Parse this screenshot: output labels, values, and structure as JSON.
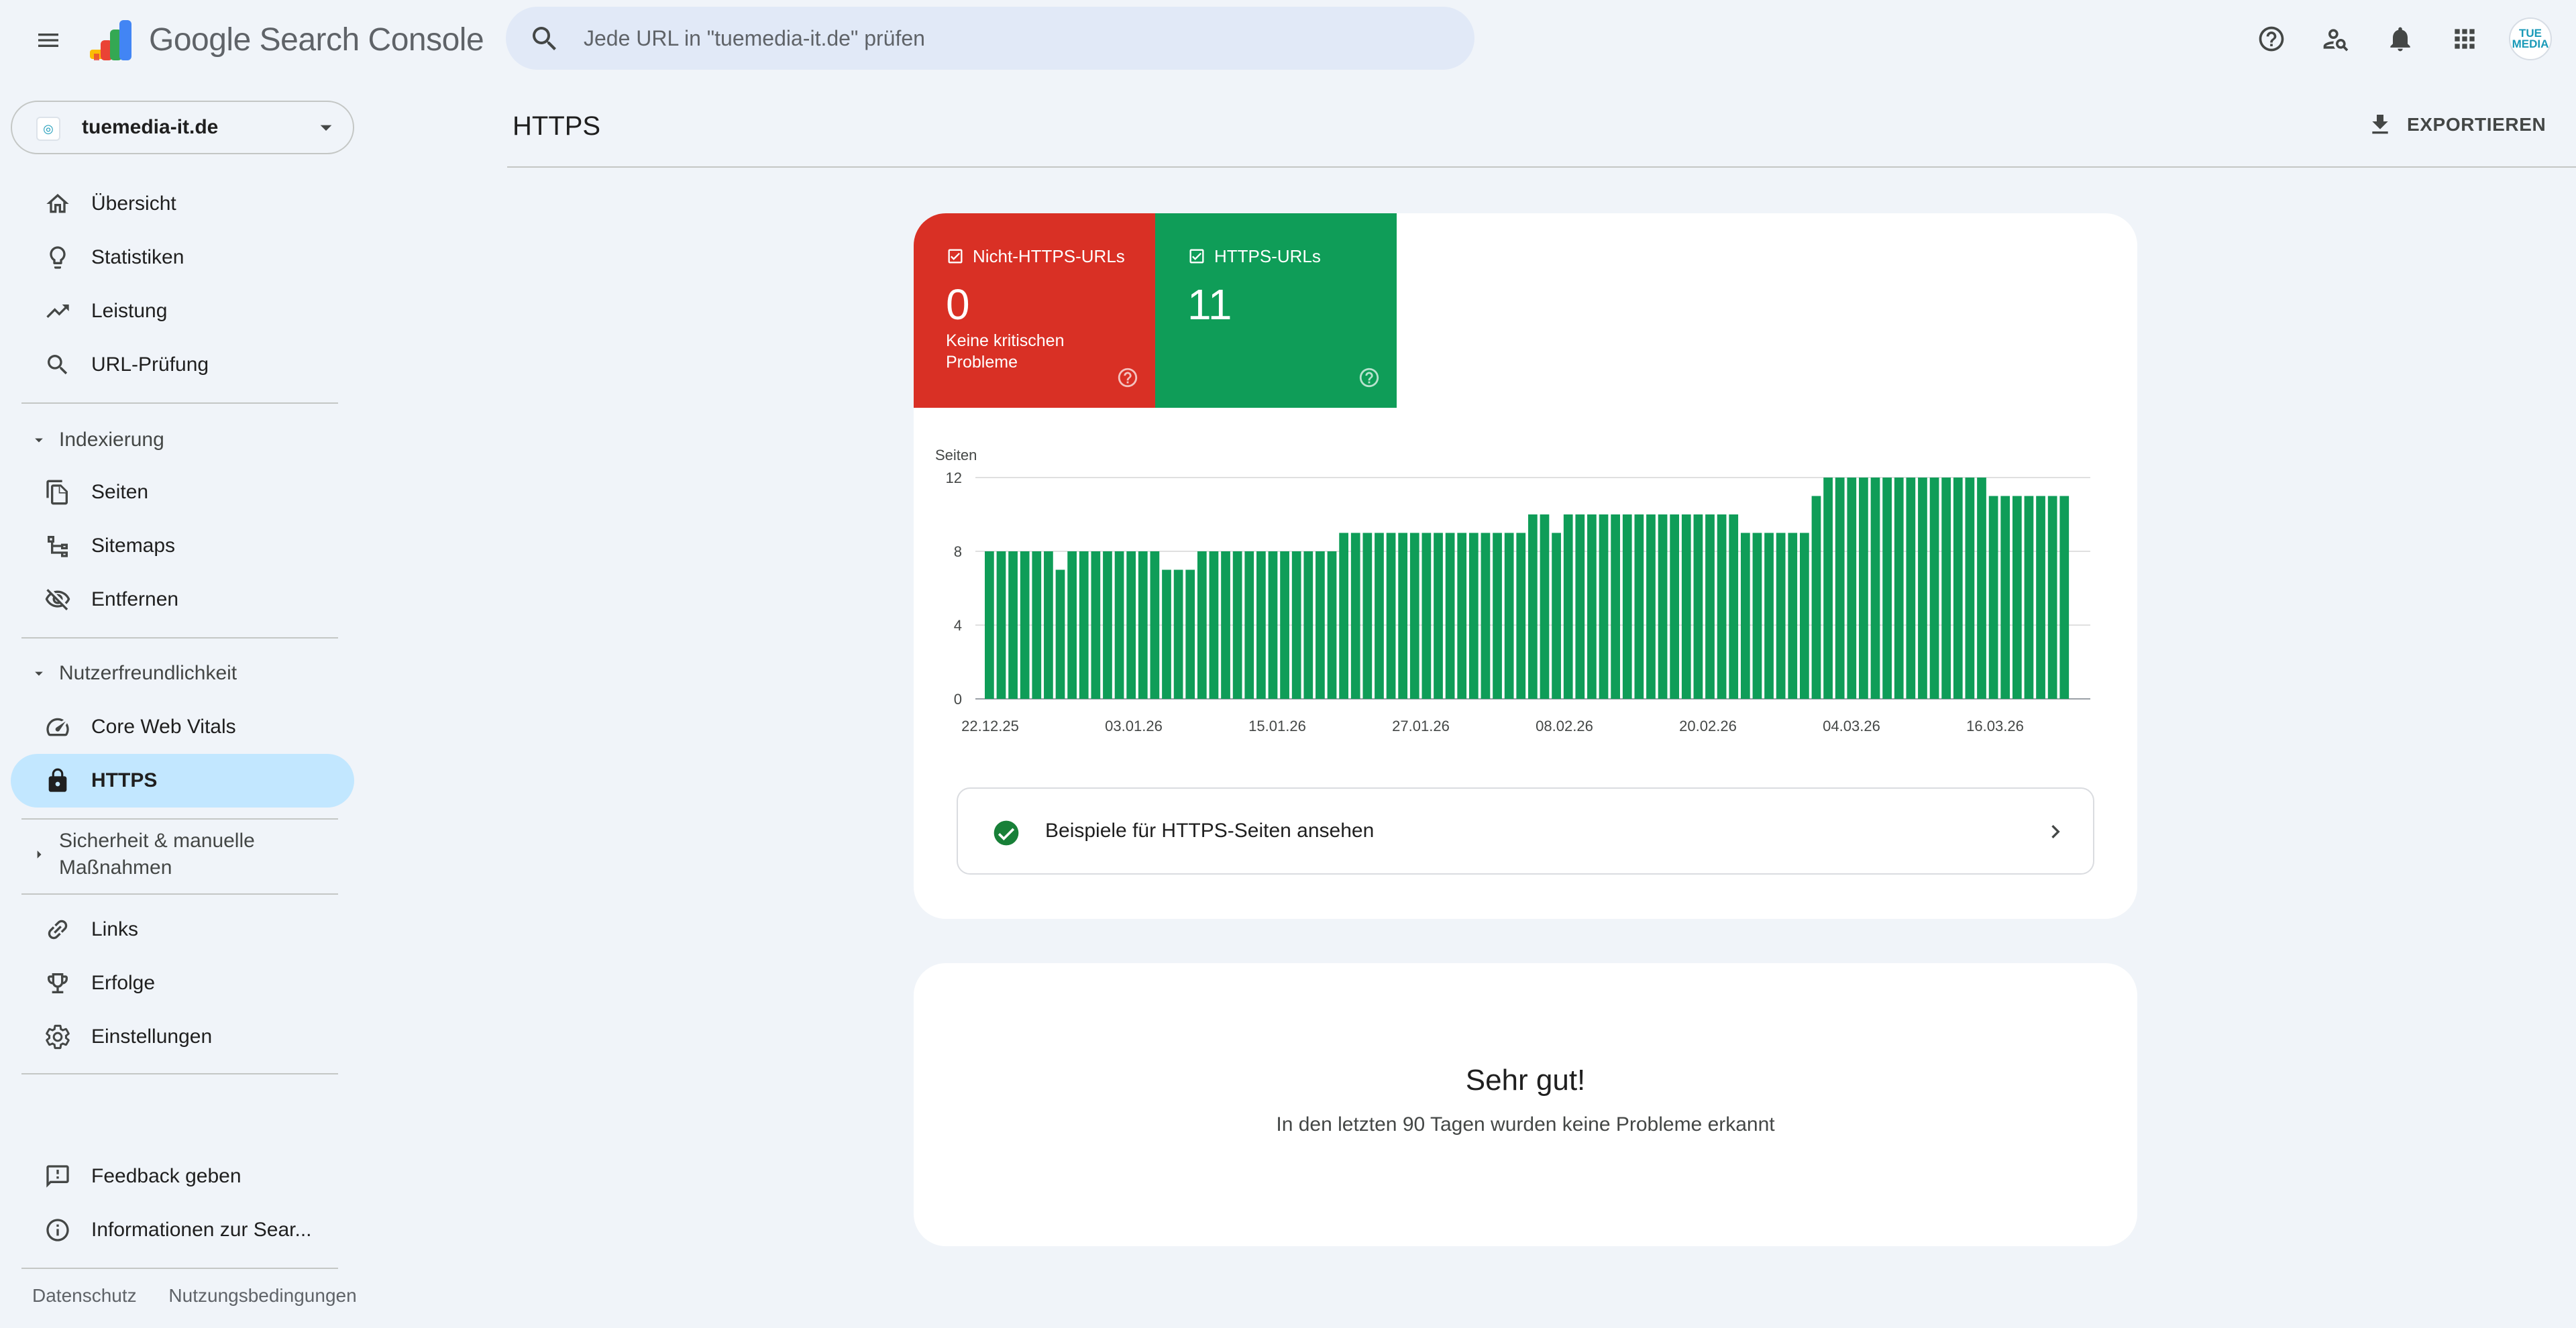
{
  "header": {
    "app_title": "Google Search Console",
    "search_placeholder": "Jede URL in \"tuemedia-it.de\" prüfen",
    "avatar_text": "TUE MEDIA",
    "icons": [
      "menu-icon",
      "help-icon",
      "manage-users-icon",
      "notifications-icon",
      "apps-icon"
    ]
  },
  "sidebar": {
    "property": "tuemedia-it.de",
    "items_top": [
      {
        "label": "Übersicht",
        "icon": "home-icon"
      },
      {
        "label": "Statistiken",
        "icon": "lightbulb-icon"
      },
      {
        "label": "Leistung",
        "icon": "trending-up-icon"
      },
      {
        "label": "URL-Prüfung",
        "icon": "search-icon"
      }
    ],
    "section_indexing": "Indexierung",
    "items_indexing": [
      {
        "label": "Seiten",
        "icon": "pages-icon"
      },
      {
        "label": "Sitemaps",
        "icon": "sitemap-icon"
      },
      {
        "label": "Entfernen",
        "icon": "visibility-off-icon"
      }
    ],
    "section_usability": "Nutzerfreundlichkeit",
    "items_usability": [
      {
        "label": "Core Web Vitals",
        "icon": "speed-icon"
      },
      {
        "label": "HTTPS",
        "icon": "lock-icon",
        "active": true
      }
    ],
    "section_security": "Sicherheit & manuelle Maßnahmen",
    "items_bottom": [
      {
        "label": "Links",
        "icon": "link-icon"
      },
      {
        "label": "Erfolge",
        "icon": "trophy-icon"
      },
      {
        "label": "Einstellungen",
        "icon": "settings-icon"
      }
    ],
    "items_footer": [
      {
        "label": "Feedback geben",
        "icon": "feedback-icon"
      },
      {
        "label": "Informationen zur Sear...",
        "icon": "info-icon"
      }
    ],
    "footer_links": [
      "Datenschutz",
      "Nutzungsbedingungen"
    ]
  },
  "main": {
    "title": "HTTPS",
    "export_label": "EXPORTIEREN",
    "tiles": {
      "non_https": {
        "label": "Nicht-HTTPS-URLs",
        "value": "0",
        "sub": "Keine kritischen Probleme"
      },
      "https": {
        "label": "HTTPS-URLs",
        "value": "11"
      }
    },
    "examples_label": "Beispiele für HTTPS-Seiten ansehen",
    "ok_title": "Sehr gut!",
    "ok_sub": "In den letzten 90 Tagen wurden keine Probleme erkannt"
  },
  "colors": {
    "bar": "#0f9d58",
    "non_https_tile": "#d93025",
    "https_tile": "#0f9d58",
    "active_nav": "#c2e7ff"
  },
  "chart_data": {
    "type": "bar",
    "ylabel": "Seiten",
    "ylim": [
      0,
      12
    ],
    "yticks": [
      0,
      4,
      8,
      12
    ],
    "xtick_labels": [
      "22.12.25",
      "03.01.26",
      "15.01.26",
      "27.01.26",
      "08.02.26",
      "20.02.26",
      "04.03.26",
      "16.03.26"
    ],
    "grid": true,
    "series": [
      {
        "values": [
          8,
          8,
          8,
          8,
          8,
          8,
          7,
          8,
          8,
          8,
          8,
          8,
          8,
          8,
          8,
          7,
          7,
          7,
          8,
          8,
          8,
          8,
          8,
          8,
          8,
          8,
          8,
          8,
          8,
          8,
          9,
          9,
          9,
          9,
          9,
          9,
          9,
          9,
          9,
          9,
          9,
          9,
          9,
          9,
          9,
          9,
          10,
          10,
          9,
          10,
          10,
          10,
          10,
          10,
          10,
          10,
          10,
          10,
          10,
          10,
          10,
          10,
          10,
          10,
          9,
          9,
          9,
          9,
          9,
          9,
          11,
          12,
          12,
          12,
          12,
          12,
          12,
          12,
          12,
          12,
          12,
          12,
          12,
          12,
          12,
          11,
          11,
          11,
          11,
          11,
          11,
          11
        ]
      }
    ]
  }
}
